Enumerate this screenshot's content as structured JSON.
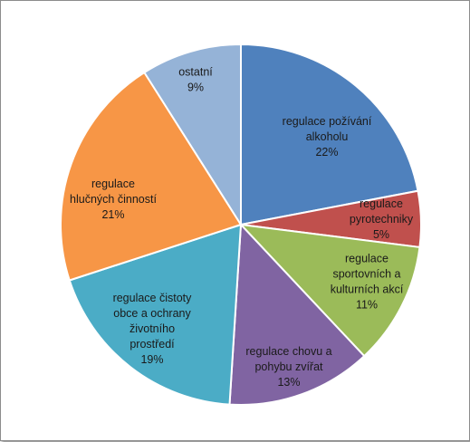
{
  "chart_data": {
    "type": "pie",
    "title": "",
    "slices": [
      {
        "lines": [
          "regulace požívání",
          "alkoholu"
        ],
        "pct_label": "22%",
        "value": 22,
        "color": "#4f81bd"
      },
      {
        "lines": [
          "regulace",
          "pyrotechniky"
        ],
        "pct_label": "5%",
        "value": 5,
        "color": "#c0504d"
      },
      {
        "lines": [
          "regulace",
          "sportovních a",
          "kulturních akcí"
        ],
        "pct_label": "11%",
        "value": 11,
        "color": "#9bbb59"
      },
      {
        "lines": [
          "regulace chovu a",
          "pohybu zvířat"
        ],
        "pct_label": "13%",
        "value": 13,
        "color": "#8064a2"
      },
      {
        "lines": [
          "regulace čistoty",
          "obce a ochrany",
          "životního",
          "prostředí"
        ],
        "pct_label": "19%",
        "value": 19,
        "color": "#4bacc6"
      },
      {
        "lines": [
          "regulace",
          "hlučných činností"
        ],
        "pct_label": "21%",
        "value": 21,
        "color": "#f79646"
      },
      {
        "lines": [
          "ostatní"
        ],
        "pct_label": "9%",
        "value": 9,
        "color": "#95b3d7"
      }
    ]
  }
}
